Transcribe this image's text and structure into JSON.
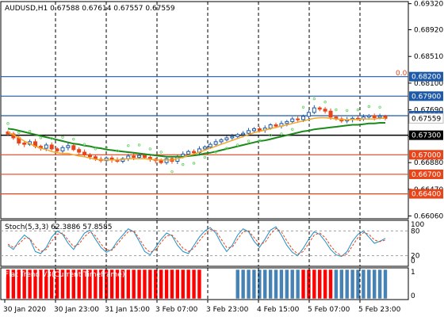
{
  "symbol_header": "AUDUSD,H1  0.67588 0.67614 0.67557 0.67559",
  "main_panel": {
    "price_range": [
      0.6603,
      0.6934
    ],
    "price_ticks": [
      "0.69320",
      "0.68920",
      "0.68510",
      "0.68100",
      "0.67690",
      "0.67280",
      "0.66880",
      "0.66470",
      "0.66060"
    ],
    "fib_label": "0.0",
    "levels": [
      {
        "value": 0.682,
        "label": "0.68200",
        "color": "#1f5aa8",
        "kind": "line"
      },
      {
        "value": 0.679,
        "label": "0.67900",
        "color": "#1f5aa8",
        "kind": "line"
      },
      {
        "value": 0.676,
        "label": "0.67600",
        "color": "#1f5aa8",
        "kind": "line"
      },
      {
        "value": 0.673,
        "label": "0.67300",
        "color": "#000000",
        "kind": "line"
      },
      {
        "value": 0.67,
        "label": "0.67000",
        "color": "#e8441a",
        "kind": "line"
      },
      {
        "value": 0.667,
        "label": "0.66700",
        "color": "#e8441a",
        "kind": "line"
      },
      {
        "value": 0.664,
        "label": "0.66400",
        "color": "#e8441a",
        "kind": "line"
      }
    ],
    "current_price_label": "0.67559",
    "current_price": 0.67559
  },
  "chart_data": {
    "type": "candlestick",
    "symbol": "AUDUSD",
    "timeframe": "H1",
    "ohlc_header": {
      "open": 0.67588,
      "high": 0.67614,
      "low": 0.67557,
      "close": 0.67559
    },
    "time_labels": [
      "30 Jan 2020",
      "30 Jan 23:00",
      "31 Jan 15:00",
      "3 Feb 07:00",
      "3 Feb 23:00",
      "4 Feb 15:00",
      "5 Feb 07:00",
      "5 Feb 23:00"
    ],
    "close_path": [
      0.6732,
      0.6726,
      0.6718,
      0.6716,
      0.672,
      0.6713,
      0.671,
      0.6715,
      0.6709,
      0.6706,
      0.6711,
      0.6714,
      0.6708,
      0.6704,
      0.67,
      0.6697,
      0.6693,
      0.6691,
      0.6695,
      0.6692,
      0.669,
      0.6694,
      0.6698,
      0.6696,
      0.6699,
      0.6696,
      0.6693,
      0.6691,
      0.6688,
      0.6694,
      0.669,
      0.6697,
      0.6701,
      0.6705,
      0.6703,
      0.6709,
      0.6712,
      0.6716,
      0.672,
      0.6723,
      0.6726,
      0.6728,
      0.6731,
      0.6733,
      0.6737,
      0.674,
      0.6738,
      0.6741,
      0.6746,
      0.6744,
      0.6748,
      0.6751,
      0.6755,
      0.6754,
      0.6759,
      0.6765,
      0.6772,
      0.677,
      0.6767,
      0.6758,
      0.6755,
      0.6752,
      0.6754,
      0.6756,
      0.6755,
      0.6758,
      0.676,
      0.6757,
      0.6759,
      0.67559
    ],
    "ma_fast": [
      0.6735,
      0.6731,
      0.6726,
      0.6721,
      0.6717,
      0.6713,
      0.671,
      0.6708,
      0.6705,
      0.6703,
      0.6702,
      0.6702,
      0.67,
      0.6698,
      0.6697,
      0.6695,
      0.6693,
      0.6692,
      0.6692,
      0.6692,
      0.6692,
      0.6693,
      0.6694,
      0.6694,
      0.6694,
      0.6694,
      0.6693,
      0.6692,
      0.6692,
      0.6692,
      0.6692,
      0.6694,
      0.6696,
      0.6699,
      0.6701,
      0.6704,
      0.6707,
      0.671,
      0.6713,
      0.6716,
      0.6719,
      0.6722,
      0.6725,
      0.6728,
      0.6731,
      0.6734,
      0.6736,
      0.6738,
      0.674,
      0.6742,
      0.6744,
      0.6746,
      0.6748,
      0.675,
      0.6752,
      0.6754,
      0.6756,
      0.6757,
      0.6757,
      0.6756,
      0.6755,
      0.6754,
      0.6754,
      0.6754,
      0.6754,
      0.6755,
      0.6755,
      0.6755,
      0.6756,
      0.6756
    ],
    "ma_slow": [
      0.674,
      0.6739,
      0.6737,
      0.6735,
      0.6733,
      0.6731,
      0.6729,
      0.6727,
      0.6725,
      0.6723,
      0.6721,
      0.6719,
      0.6717,
      0.6716,
      0.6714,
      0.6713,
      0.6711,
      0.671,
      0.6708,
      0.6707,
      0.6706,
      0.6705,
      0.6704,
      0.6703,
      0.6702,
      0.6701,
      0.67,
      0.6699,
      0.6698,
      0.6697,
      0.6697,
      0.6697,
      0.6697,
      0.6698,
      0.6699,
      0.67,
      0.6702,
      0.6703,
      0.6705,
      0.6707,
      0.6709,
      0.6711,
      0.6713,
      0.6715,
      0.6717,
      0.6719,
      0.6721,
      0.6722,
      0.6724,
      0.6726,
      0.6728,
      0.673,
      0.6732,
      0.6734,
      0.6736,
      0.6737,
      0.6739,
      0.674,
      0.6741,
      0.6742,
      0.6743,
      0.6744,
      0.6745,
      0.6746,
      0.6746,
      0.6747,
      0.6748,
      0.6748,
      0.6749,
      0.6749
    ],
    "stochastic": {
      "label": "Stoch(5,3,3) 62.3886 57.8585",
      "main": 62.3886,
      "signal": 57.8585,
      "levels": [
        80,
        20
      ],
      "range": [
        0,
        100
      ],
      "tick_labels": [
        "100",
        "80",
        "20",
        "0"
      ],
      "main_path": [
        45,
        35,
        55,
        70,
        60,
        30,
        25,
        40,
        65,
        80,
        72,
        50,
        35,
        55,
        75,
        82,
        60,
        40,
        28,
        35,
        55,
        70,
        85,
        78,
        55,
        30,
        22,
        40,
        60,
        75,
        68,
        45,
        30,
        25,
        45,
        65,
        80,
        88,
        75,
        50,
        30,
        45,
        70,
        85,
        78,
        55,
        40,
        60,
        82,
        90,
        70,
        45,
        28,
        20,
        38,
        60,
        78,
        72,
        55,
        35,
        22,
        18,
        30,
        55,
        72,
        80,
        65,
        50,
        55,
        62
      ],
      "signal_path": [
        48,
        40,
        48,
        62,
        62,
        42,
        30,
        35,
        55,
        72,
        75,
        58,
        42,
        48,
        66,
        78,
        68,
        48,
        34,
        33,
        48,
        64,
        78,
        80,
        62,
        40,
        28,
        34,
        52,
        68,
        70,
        55,
        38,
        30,
        38,
        56,
        72,
        84,
        80,
        60,
        40,
        40,
        60,
        78,
        80,
        64,
        48,
        52,
        72,
        86,
        78,
        56,
        36,
        24,
        30,
        50,
        70,
        75,
        64,
        44,
        28,
        20,
        24,
        44,
        64,
        76,
        72,
        58,
        54,
        57.8585
      ]
    },
    "flat_trend": {
      "label": "Flat Trend V3(Current Timeframe)",
      "range": [
        0,
        1
      ],
      "tick_labels": [
        "1",
        "0"
      ],
      "segments": [
        {
          "color": "#ff0000",
          "count": 36
        },
        {
          "color": "#ffffff",
          "count": 6
        },
        {
          "color": "#4682b4",
          "count": 12
        },
        {
          "color": "#ff0000",
          "count": 6
        },
        {
          "color": "#4682b4",
          "count": 30
        },
        {
          "color": "#ff0000",
          "count": 2
        },
        {
          "color": "#4682b4",
          "count": 12
        }
      ]
    },
    "colors": {
      "bull": "#1f5aa8",
      "bear": "#e8441a",
      "ma_fast": "#f5a623",
      "ma_slow": "#1a8a1a",
      "sar": "#5fd35f",
      "grid": "#000000"
    }
  }
}
